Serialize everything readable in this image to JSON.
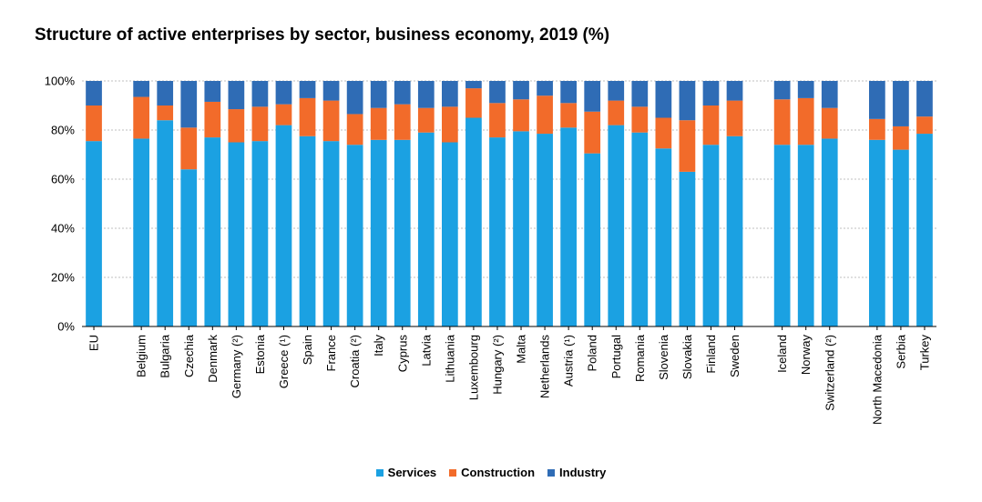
{
  "chart_data": {
    "type": "bar",
    "stacked": true,
    "title": "Structure of active enterprises by sector, business economy, 2019 (%)",
    "xlabel": "",
    "ylabel": "",
    "ylim": [
      0,
      100
    ],
    "y_ticks": [
      "0%",
      "20%",
      "40%",
      "60%",
      "80%",
      "100%"
    ],
    "grid": true,
    "legend_position": "bottom-center",
    "categories": [
      "EU",
      "Belgium",
      "Bulgaria",
      "Czechia",
      "Denmark",
      "Germany (²)",
      "Estonia",
      "Greece (¹)",
      "Spain",
      "France",
      "Croatia (²)",
      "Italy",
      "Cyprus",
      "Latvia",
      "Lithuania",
      "Luxembourg",
      "Hungary (²)",
      "Malta",
      "Netherlands",
      "Austria (¹)",
      "Poland",
      "Portugal",
      "Romania",
      "Slovenia",
      "Slovakia",
      "Finland",
      "Sweden",
      "Iceland",
      "Norway",
      "Switzerland (²)",
      "North Macedonia",
      "Serbia",
      "Turkey"
    ],
    "groups": [
      1,
      26,
      3,
      3
    ],
    "series": [
      {
        "name": "Services",
        "color": "#1ba1e2",
        "values": [
          75.5,
          76.5,
          84,
          64,
          77,
          75,
          75.5,
          82,
          77.5,
          75.5,
          74,
          76,
          76,
          79,
          75,
          85,
          77,
          79.5,
          78.5,
          81,
          70.5,
          82,
          79,
          72.5,
          63,
          74,
          77.5,
          74,
          74,
          76.5,
          76,
          72,
          78.5
        ]
      },
      {
        "name": "Construction",
        "color": "#f26b2a",
        "values": [
          14.5,
          17,
          6,
          17,
          14.5,
          13.5,
          14,
          8.5,
          15.5,
          16.5,
          12.5,
          13,
          14.5,
          10,
          14.5,
          12,
          14,
          13,
          15.5,
          10,
          17,
          10,
          10.5,
          12.5,
          21,
          16,
          14.5,
          18.5,
          19,
          12.5,
          8.5,
          9.5,
          7
        ]
      },
      {
        "name": "Industry",
        "color": "#2f6cb5",
        "values": [
          10,
          6.5,
          10,
          19,
          8.5,
          11.5,
          10.5,
          9.5,
          7,
          8,
          13.5,
          11,
          9.5,
          11,
          10.5,
          3,
          9,
          7.5,
          6,
          9,
          12.5,
          8,
          10.5,
          15,
          16,
          10,
          8,
          7.5,
          7,
          11,
          15.5,
          18.5,
          14.5
        ]
      }
    ]
  }
}
